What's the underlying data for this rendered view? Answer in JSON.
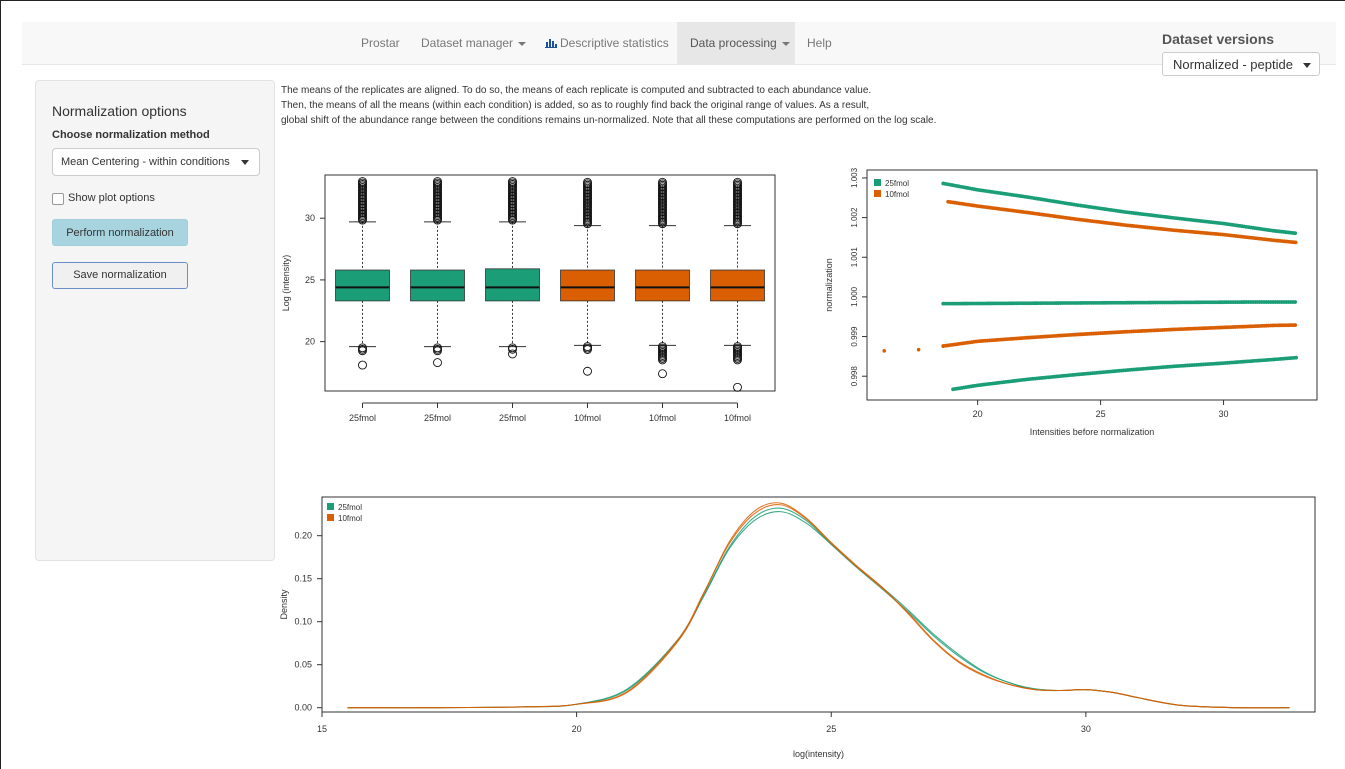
{
  "navbar": {
    "items": [
      "Prostar",
      "Dataset manager",
      "Descriptive statistics",
      "Data processing",
      "Help"
    ],
    "active": "Data processing"
  },
  "dataset_versions": {
    "title": "Dataset versions",
    "selected": "Normalized - peptide"
  },
  "sidebar": {
    "title": "Normalization options",
    "method_label": "Choose normalization method",
    "method_value": "Mean Centering - within conditions",
    "show_plot_options": "Show plot options",
    "perform_button": "Perform normalization",
    "save_button": "Save normalization"
  },
  "description": {
    "line1": "The means of the replicates are aligned. To do so, the means of each replicate is computed and subtracted to each abundance value.",
    "line2": "Then, the means of all the means (within each condition) is added, so as to roughly find back the original range of values. As a result,",
    "line3": "global shift of the abundance range between the conditions remains un-normalized. Note that all these computations are performed on the log scale."
  },
  "colors": {
    "25fmol": "#1b9e77",
    "10fmol": "#d95f02"
  },
  "chart_data": [
    {
      "type": "boxplot",
      "ylabel": "Log (intensity)",
      "yticks": [
        20,
        25,
        30
      ],
      "ylim": [
        16,
        33.5
      ],
      "categories": [
        "25fmol",
        "25fmol",
        "25fmol",
        "10fmol",
        "10fmol",
        "10fmol"
      ],
      "boxes": [
        {
          "q1": 23.3,
          "median": 24.4,
          "q3": 25.8,
          "whisker_low": 19.6,
          "whisker_high": 29.7,
          "outliers_low": [
            19.2,
            18.1
          ],
          "outliers_high_max": 33
        },
        {
          "q1": 23.3,
          "median": 24.4,
          "q3": 25.8,
          "whisker_low": 19.6,
          "whisker_high": 29.7,
          "outliers_low": [
            19.2,
            18.3
          ],
          "outliers_high_max": 33
        },
        {
          "q1": 23.3,
          "median": 24.4,
          "q3": 25.9,
          "whisker_low": 19.6,
          "whisker_high": 29.7,
          "outliers_low": [
            19.3,
            19.0
          ],
          "outliers_high_max": 33
        },
        {
          "q1": 23.3,
          "median": 24.4,
          "q3": 25.8,
          "whisker_low": 19.7,
          "whisker_high": 29.4,
          "outliers_low": [
            19.3,
            17.6
          ],
          "outliers_high_max": 33
        },
        {
          "q1": 23.3,
          "median": 24.4,
          "q3": 25.8,
          "whisker_low": 19.7,
          "whisker_high": 29.4,
          "outliers_low": [
            18.5,
            17.4
          ],
          "outliers_high_max": 33
        },
        {
          "q1": 23.3,
          "median": 24.4,
          "q3": 25.8,
          "whisker_low": 19.7,
          "whisker_high": 29.4,
          "outliers_low": [
            18.5,
            16.3
          ],
          "outliers_high_max": 33
        }
      ]
    },
    {
      "type": "scatter",
      "xlabel": "Intensities before normalization",
      "ylabel": "normalization",
      "xticks": [
        20,
        25,
        30
      ],
      "yticks": [
        0.998,
        0.999,
        1.0,
        1.001,
        1.002,
        1.003
      ],
      "ytick_labels": [
        "0.998",
        "0.999",
        "1.000",
        "1.001",
        "1.002",
        "1.003"
      ],
      "xlim": [
        15.5,
        33.8
      ],
      "ylim": [
        0.9974,
        1.0032
      ],
      "legend": [
        "25fmol",
        "10fmol"
      ],
      "legend_position": "top-left",
      "series": [
        {
          "name": "25fmol",
          "curves": [
            {
              "x": [
                18,
                20,
                22,
                24,
                26,
                28,
                30,
                32,
                33
              ],
              "y": [
                1.00293,
                1.0027,
                1.00252,
                1.00232,
                1.00214,
                1.00199,
                1.00185,
                1.00167,
                1.0016
              ]
            },
            {
              "x": [
                18.1,
                19,
                22,
                25,
                28,
                31,
                33
              ],
              "y": [
                0.99983,
                0.99983,
                0.99984,
                0.99985,
                0.99986,
                0.99987,
                0.99987
              ]
            },
            {
              "x": [
                19,
                20,
                22,
                24,
                26,
                28,
                30,
                32,
                33
              ],
              "y": [
                0.99767,
                0.99777,
                0.99792,
                0.99804,
                0.99815,
                0.99825,
                0.99833,
                0.99842,
                0.99847
              ]
            }
          ]
        },
        {
          "name": "10fmol",
          "curves": [
            {
              "x": [
                18.8,
                20,
                22,
                24,
                26,
                28,
                30,
                32,
                33
              ],
              "y": [
                1.0024,
                1.00229,
                1.00213,
                1.00196,
                1.00181,
                1.00168,
                1.00157,
                1.00143,
                1.00137
              ]
            },
            {
              "x": [
                16.2,
                17.6,
                18.6,
                20,
                22,
                24,
                26,
                28,
                30,
                32,
                33
              ],
              "y": [
                0.99864,
                0.99867,
                0.99876,
                0.99888,
                0.99897,
                0.99905,
                0.99912,
                0.99918,
                0.99923,
                0.99928,
                0.99929
              ]
            }
          ]
        }
      ]
    },
    {
      "type": "line",
      "xlabel": "log(intensity)",
      "ylabel": "Density",
      "xticks": [
        15,
        20,
        25,
        30
      ],
      "yticks": [
        0.0,
        0.05,
        0.1,
        0.15,
        0.2
      ],
      "ytick_labels": [
        "0.00",
        "0.05",
        "0.10",
        "0.15",
        "0.20"
      ],
      "xlim": [
        15,
        34.5
      ],
      "ylim": [
        -0.005,
        0.245
      ],
      "legend": [
        "25fmol",
        "10fmol"
      ],
      "legend_position": "top-left",
      "x": [
        15.5,
        17,
        19,
        20,
        21,
        22,
        22.5,
        23,
        23.5,
        24,
        24.5,
        25,
        25.5,
        26,
        26.5,
        27,
        27.5,
        28,
        28.5,
        29,
        29.5,
        30,
        30.5,
        31,
        31.5,
        32,
        33,
        34
      ],
      "series": [
        {
          "name": "25fmol",
          "values": [
            0,
            0,
            0.001,
            0.004,
            0.022,
            0.08,
            0.13,
            0.185,
            0.218,
            0.228,
            0.215,
            0.19,
            0.164,
            0.14,
            0.114,
            0.086,
            0.062,
            0.042,
            0.029,
            0.022,
            0.02,
            0.021,
            0.018,
            0.012,
            0.006,
            0.002,
            0,
            0
          ]
        },
        {
          "name": "25fmol",
          "values": [
            0,
            0,
            0.001,
            0.004,
            0.021,
            0.079,
            0.131,
            0.187,
            0.222,
            0.232,
            0.218,
            0.19,
            0.163,
            0.138,
            0.112,
            0.084,
            0.06,
            0.041,
            0.029,
            0.021,
            0.02,
            0.021,
            0.018,
            0.012,
            0.006,
            0.002,
            0,
            0
          ]
        },
        {
          "name": "10fmol",
          "values": [
            0,
            0,
            0.001,
            0.004,
            0.018,
            0.078,
            0.133,
            0.193,
            0.229,
            0.238,
            0.221,
            0.192,
            0.165,
            0.14,
            0.11,
            0.078,
            0.053,
            0.037,
            0.027,
            0.021,
            0.02,
            0.021,
            0.018,
            0.012,
            0.006,
            0.002,
            0,
            0
          ]
        },
        {
          "name": "10fmol",
          "values": [
            0,
            0,
            0.001,
            0.004,
            0.019,
            0.08,
            0.134,
            0.191,
            0.226,
            0.236,
            0.22,
            0.191,
            0.164,
            0.139,
            0.111,
            0.079,
            0.054,
            0.038,
            0.027,
            0.021,
            0.02,
            0.021,
            0.018,
            0.012,
            0.006,
            0.002,
            0,
            0
          ]
        }
      ]
    }
  ]
}
